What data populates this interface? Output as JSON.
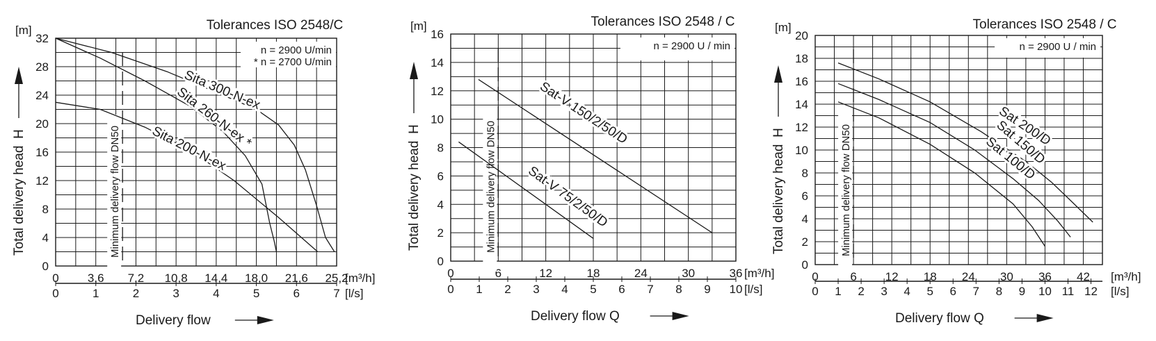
{
  "chart_data": [
    {
      "type": "line",
      "title": "Tolerances  ISO 2548/C",
      "info": [
        "n = 2900 U/min",
        "* n = 2700 U/min"
      ],
      "ylabel": "Total delivery head",
      "ysymbol": "H",
      "yunit": "[m]",
      "xunit": "[m³/h]",
      "x2unit": "[l/s]",
      "xlabel": "Delivery flow",
      "min_flow_label": "Minimum delivery flow DN50",
      "min_flow_x": 6.0,
      "xlim": [
        0,
        25.2
      ],
      "ylim": [
        0,
        32
      ],
      "xticks": [
        "0",
        "3,6",
        "7,2",
        "10,8",
        "14,4",
        "18,0",
        "21,6",
        "25,2"
      ],
      "yticks": [
        "0",
        "4",
        "8",
        "12",
        "16",
        "20",
        "24",
        "28",
        "32"
      ],
      "x2ticks": [
        "0",
        "1",
        "2",
        "3",
        "4",
        "5",
        "6",
        "7"
      ],
      "series": [
        {
          "name": "Sita 300-N-ex",
          "label_at": [
            14.8,
            24.2
          ],
          "x": [
            0,
            5,
            10,
            15,
            18,
            20,
            21.4,
            22.4,
            23.4,
            24.2,
            25.0
          ],
          "y": [
            32,
            30,
            27.3,
            24,
            22,
            19.8,
            17,
            13.5,
            8.5,
            4,
            2
          ]
        },
        {
          "name": "Sita 260-N-ex *",
          "label_at": [
            14.0,
            20.4
          ],
          "x": [
            0,
            4,
            8,
            12,
            15,
            17,
            18.5,
            19.2,
            19.6,
            19.8
          ],
          "y": [
            32,
            29.2,
            26,
            22.5,
            18.9,
            15.5,
            11.5,
            6,
            3.5,
            2
          ]
        },
        {
          "name": "Sita 200-N-ex",
          "label_at": [
            11.8,
            16.0
          ],
          "x": [
            0,
            4,
            8,
            12,
            16,
            20,
            23.5
          ],
          "y": [
            23,
            22,
            19.5,
            16.3,
            12,
            6.8,
            2
          ]
        }
      ]
    },
    {
      "type": "line",
      "title": "Tolerances  ISO 2548 / C",
      "info": [
        "n = 2900  U / min"
      ],
      "ylabel": "Total delivery head",
      "ysymbol": "H",
      "yunit": "[m]",
      "xunit": "[m³/h]",
      "x2unit": "[l/s]",
      "xlabel": "Delivery flow  Q",
      "min_flow_label": "Minimum delivery flow DN50",
      "min_flow_x": 6.0,
      "xlim": [
        0,
        36
      ],
      "ylim": [
        0,
        16
      ],
      "xticks": [
        "0",
        "6",
        "12",
        "18",
        "24",
        "30",
        "36"
      ],
      "yticks": [
        "0",
        "2",
        "4",
        "6",
        "8",
        "10",
        "12",
        "14",
        "16"
      ],
      "x2ticks": [
        "0",
        "1",
        "2",
        "3",
        "4",
        "5",
        "6",
        "7",
        "8",
        "9",
        "10"
      ],
      "series": [
        {
          "name": "Sat-V 150/2/50/D",
          "label_at": [
            16.5,
            10.2
          ],
          "x": [
            3.5,
            33
          ],
          "y": [
            12.8,
            2
          ]
        },
        {
          "name": "Sat-V 75/2/50/D",
          "label_at": [
            14.5,
            4.3
          ],
          "x": [
            1,
            18
          ],
          "y": [
            8.4,
            1.6
          ]
        }
      ]
    },
    {
      "type": "line",
      "title": "Tolerances  ISO 2548 / C",
      "info": [
        "n = 2900  U / min"
      ],
      "ylabel": "Total delivery head",
      "ysymbol": "H",
      "yunit": "[m]",
      "xunit": "[m³/h]",
      "x2unit": "[l/s]",
      "xlabel": "Delivery flow  Q",
      "min_flow_label": "Minimum delivery flow DN50",
      "min_flow_x": 6.0,
      "xlim": [
        0,
        45
      ],
      "ylim": [
        0,
        20
      ],
      "xticks": [
        "0",
        "6",
        "12",
        "18",
        "24",
        "30",
        "36",
        "42"
      ],
      "yticks": [
        "0",
        "2",
        "4",
        "6",
        "8",
        "10",
        "12",
        "14",
        "16",
        "18",
        "20"
      ],
      "x2ticks": [
        "0",
        "1",
        "2",
        "3",
        "4",
        "5",
        "6",
        "7",
        "8",
        "9",
        "10",
        "11",
        "12"
      ],
      "series": [
        {
          "name": "Sat 200/D",
          "label_at": [
            32.5,
            11.8
          ],
          "x": [
            3.6,
            10,
            18,
            26,
            33,
            37,
            40,
            43.5
          ],
          "y": [
            17.6,
            16.2,
            14.2,
            11.6,
            9,
            7.2,
            5.6,
            3.7
          ]
        },
        {
          "name": "Sat 150/D",
          "label_at": [
            31.8,
            10.4
          ],
          "x": [
            3.6,
            10,
            18,
            25,
            31,
            35,
            38,
            40
          ],
          "y": [
            15.8,
            14.4,
            12.4,
            10,
            7.5,
            5.6,
            3.8,
            2.4
          ]
        },
        {
          "name": "Sat 100/D",
          "label_at": [
            30.2,
            9.0
          ],
          "x": [
            3.6,
            10,
            18,
            25,
            31,
            34,
            36
          ],
          "y": [
            14.2,
            12.8,
            10.5,
            8,
            5.3,
            3.3,
            1.6
          ]
        }
      ]
    }
  ]
}
